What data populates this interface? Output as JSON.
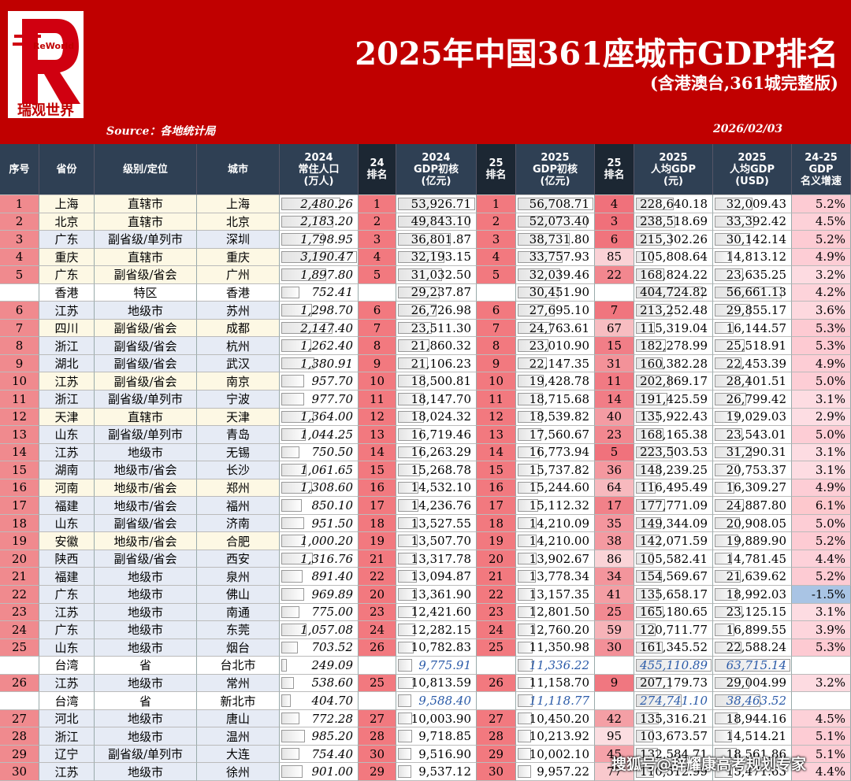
{
  "header": {
    "logo_brand": "ReWorld",
    "logo_text": "瑞观世界",
    "title": "2025年中国361座城市GDP排名",
    "subtitle": "(含港澳台,361城完整版)",
    "source": "Source：各地统计局",
    "date": "2026/02/03"
  },
  "table": {
    "columns": [
      [
        "序号"
      ],
      [
        "省份"
      ],
      [
        "级别/定位"
      ],
      [
        "城市"
      ],
      [
        "2024",
        "常住人口",
        "(万人)"
      ],
      [
        "24",
        "排名"
      ],
      [
        "2024",
        "GDP初核",
        "(亿元)"
      ],
      [
        "25",
        "排名"
      ],
      [
        "2025",
        "GDP初核",
        "(亿元)"
      ],
      [
        "25",
        "排名"
      ],
      [
        "2025",
        "人均GDP",
        "(元)"
      ],
      [
        "2025",
        "人均GDP",
        "(USD)"
      ],
      [
        "24-25",
        "GDP",
        "名义增速"
      ]
    ],
    "rows": [
      [
        "1",
        "上海",
        "直辖市",
        "上海",
        "2,480.26",
        "1",
        "53,926.71",
        "1",
        "56,708.71",
        "4",
        "228,640.18",
        "32,009.43",
        "5.2%"
      ],
      [
        "2",
        "北京",
        "直辖市",
        "北京",
        "2,183.20",
        "2",
        "49,843.10",
        "2",
        "52,073.40",
        "3",
        "238,518.69",
        "33,392.42",
        "4.5%"
      ],
      [
        "3",
        "广东",
        "副省级/单列市",
        "深圳",
        "1,798.95",
        "3",
        "36,801.87",
        "3",
        "38,731.80",
        "6",
        "215,302.26",
        "30,142.14",
        "5.2%"
      ],
      [
        "4",
        "重庆",
        "直辖市",
        "重庆",
        "3,190.47",
        "4",
        "32,193.15",
        "4",
        "33,757.93",
        "85",
        "105,808.64",
        "14,813.12",
        "4.9%"
      ],
      [
        "5",
        "广东",
        "副省级/省会",
        "广州",
        "1,897.80",
        "5",
        "31,032.50",
        "5",
        "32,039.46",
        "22",
        "168,824.22",
        "23,635.25",
        "3.2%"
      ],
      [
        null,
        "香港",
        "特区",
        "香港",
        "752.41",
        null,
        "29,237.87",
        null,
        "30,451.90",
        null,
        "404,724.82",
        "56,661.13",
        "4.2%"
      ],
      [
        "6",
        "江苏",
        "地级市",
        "苏州",
        "1,298.70",
        "6",
        "26,726.98",
        "6",
        "27,695.10",
        "7",
        "213,252.48",
        "29,855.17",
        "3.6%"
      ],
      [
        "7",
        "四川",
        "副省级/省会",
        "成都",
        "2,147.40",
        "7",
        "23,511.30",
        "7",
        "24,763.61",
        "67",
        "115,319.04",
        "16,144.57",
        "5.3%"
      ],
      [
        "8",
        "浙江",
        "副省级/省会",
        "杭州",
        "1,262.40",
        "8",
        "21,860.32",
        "8",
        "23,010.90",
        "15",
        "182,278.99",
        "25,518.91",
        "5.3%"
      ],
      [
        "9",
        "湖北",
        "副省级/省会",
        "武汉",
        "1,380.91",
        "9",
        "21,106.23",
        "9",
        "22,147.35",
        "31",
        "160,382.28",
        "22,453.39",
        "4.9%"
      ],
      [
        "10",
        "江苏",
        "副省级/省会",
        "南京",
        "957.70",
        "10",
        "18,500.81",
        "10",
        "19,428.78",
        "11",
        "202,869.17",
        "28,401.51",
        "5.0%"
      ],
      [
        "11",
        "浙江",
        "副省级/单列市",
        "宁波",
        "977.70",
        "11",
        "18,147.70",
        "11",
        "18,715.68",
        "14",
        "191,425.59",
        "26,799.42",
        "3.1%"
      ],
      [
        "12",
        "天津",
        "直辖市",
        "天津",
        "1,364.00",
        "12",
        "18,024.32",
        "12",
        "18,539.82",
        "40",
        "135,922.43",
        "19,029.03",
        "2.9%"
      ],
      [
        "13",
        "山东",
        "副省级/单列市",
        "青岛",
        "1,044.25",
        "13",
        "16,719.46",
        "13",
        "17,560.67",
        "23",
        "168,165.38",
        "23,543.01",
        "5.0%"
      ],
      [
        "14",
        "江苏",
        "地级市",
        "无锡",
        "750.50",
        "14",
        "16,263.29",
        "14",
        "16,773.94",
        "5",
        "223,503.53",
        "31,290.31",
        "3.1%"
      ],
      [
        "15",
        "湖南",
        "地级市/省会",
        "长沙",
        "1,061.65",
        "15",
        "15,268.78",
        "15",
        "15,737.82",
        "36",
        "148,239.25",
        "20,753.37",
        "3.1%"
      ],
      [
        "16",
        "河南",
        "地级市/省会",
        "郑州",
        "1,308.60",
        "16",
        "14,532.10",
        "16",
        "15,244.60",
        "64",
        "116,495.49",
        "16,309.27",
        "4.9%"
      ],
      [
        "17",
        "福建",
        "地级市/省会",
        "福州",
        "850.10",
        "17",
        "14,236.76",
        "17",
        "15,112.32",
        "17",
        "177,771.09",
        "24,887.80",
        "6.1%"
      ],
      [
        "18",
        "山东",
        "副省级/省会",
        "济南",
        "951.50",
        "18",
        "13,527.55",
        "18",
        "14,210.09",
        "35",
        "149,344.09",
        "20,908.05",
        "5.0%"
      ],
      [
        "19",
        "安徽",
        "地级市/省会",
        "合肥",
        "1,000.20",
        "19",
        "13,507.70",
        "19",
        "14,210.00",
        "38",
        "142,071.59",
        "19,889.90",
        "5.2%"
      ],
      [
        "20",
        "陕西",
        "副省级/省会",
        "西安",
        "1,316.76",
        "21",
        "13,317.78",
        "20",
        "13,902.67",
        "86",
        "105,582.41",
        "14,781.45",
        "4.4%"
      ],
      [
        "21",
        "福建",
        "地级市",
        "泉州",
        "891.40",
        "22",
        "13,094.87",
        "21",
        "13,778.34",
        "34",
        "154,569.67",
        "21,639.62",
        "5.2%"
      ],
      [
        "22",
        "广东",
        "地级市",
        "佛山",
        "969.89",
        "20",
        "13,361.90",
        "22",
        "13,157.35",
        "41",
        "135,658.17",
        "18,992.03",
        "-1.5%"
      ],
      [
        "23",
        "江苏",
        "地级市",
        "南通",
        "775.00",
        "23",
        "12,421.60",
        "23",
        "12,801.50",
        "25",
        "165,180.65",
        "23,125.15",
        "3.1%"
      ],
      [
        "24",
        "广东",
        "地级市",
        "东莞",
        "1,057.08",
        "24",
        "12,282.15",
        "24",
        "12,760.20",
        "59",
        "120,711.77",
        "16,899.55",
        "3.9%"
      ],
      [
        "25",
        "山东",
        "地级市",
        "烟台",
        "703.52",
        "26",
        "10,782.83",
        "25",
        "11,350.98",
        "30",
        "161,345.52",
        "22,588.24",
        "5.3%"
      ],
      [
        null,
        "台湾",
        "省",
        "台北市",
        "249.09",
        null,
        "9,775.91",
        null,
        "11,336.22",
        null,
        "455,110.89",
        "63,715.14",
        null
      ],
      [
        "26",
        "江苏",
        "地级市",
        "常州",
        "538.60",
        "25",
        "10,813.59",
        "26",
        "11,158.70",
        "9",
        "207,179.73",
        "29,004.99",
        "3.2%"
      ],
      [
        null,
        "台湾",
        "省",
        "新北市",
        "404.70",
        null,
        "9,588.40",
        null,
        "11,118.77",
        null,
        "274,741.10",
        "38,463.52",
        null
      ],
      [
        "27",
        "河北",
        "地级市",
        "唐山",
        "772.28",
        "27",
        "10,003.90",
        "27",
        "10,450.20",
        "42",
        "135,316.21",
        "18,944.16",
        "4.5%"
      ],
      [
        "28",
        "浙江",
        "地级市",
        "温州",
        "985.20",
        "28",
        "9,718.85",
        "28",
        "10,213.92",
        "95",
        "103,673.57",
        "14,514.21",
        "5.1%"
      ],
      [
        "29",
        "辽宁",
        "副省级/单列市",
        "大连",
        "754.40",
        "30",
        "9,516.90",
        "29",
        "10,002.10",
        "45",
        "132,584.71",
        "18,561.86",
        "5.1%"
      ],
      [
        "30",
        "江苏",
        "地级市",
        "徐州",
        "901.00",
        "29",
        "9,537.12",
        "30",
        "9,957.22",
        "77",
        "110,512.99",
        "15,471.63",
        "4.4%"
      ]
    ]
  },
  "watermark": "搜狐号@辞耀康高考规划专家"
}
